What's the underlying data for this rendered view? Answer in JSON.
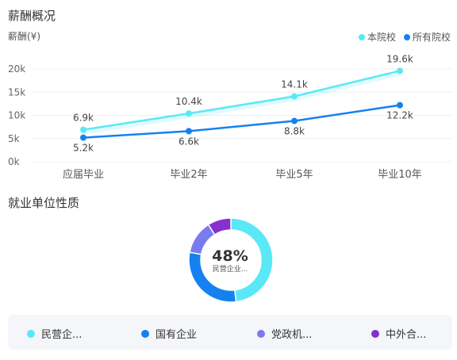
{
  "salary_section": {
    "title": "薪酬概况",
    "unit_label": "薪酬(¥)"
  },
  "employment_section": {
    "title": "就业单位性质"
  },
  "colors": {
    "this_school": "#5ae8f7",
    "all_schools": "#1581f0",
    "gov": "#7b7bf0",
    "foreign": "#8531cc"
  },
  "chart_data": [
    {
      "type": "line",
      "categories": [
        "应届毕业",
        "毕业2年",
        "毕业5年",
        "毕业10年"
      ],
      "ylabel": "薪酬(¥)",
      "ylim": [
        0,
        20000
      ],
      "yticks": [
        "0k",
        "5k",
        "10k",
        "15k",
        "20k"
      ],
      "legend_position": "top-right",
      "series": [
        {
          "name": "本院校",
          "values": [
            6900,
            10400,
            14100,
            19600
          ],
          "labels": [
            "6.9k",
            "10.4k",
            "14.1k",
            "19.6k"
          ],
          "color": "#5ae8f7"
        },
        {
          "name": "所有院校",
          "values": [
            5200,
            6600,
            8800,
            12200
          ],
          "labels": [
            "5.2k",
            "6.6k",
            "8.8k",
            "12.2k"
          ],
          "color": "#1581f0"
        }
      ]
    },
    {
      "type": "pie",
      "center_value": "48%",
      "center_label": "民营企业...",
      "slices": [
        {
          "name": "民营企...",
          "value": 48,
          "color": "#5ae8f7"
        },
        {
          "name": "国有企业",
          "value": 30,
          "color": "#1581f0"
        },
        {
          "name": "党政机...",
          "value": 13,
          "color": "#7b7bf0"
        },
        {
          "name": "中外合...",
          "value": 9,
          "color": "#8531cc"
        }
      ]
    }
  ]
}
